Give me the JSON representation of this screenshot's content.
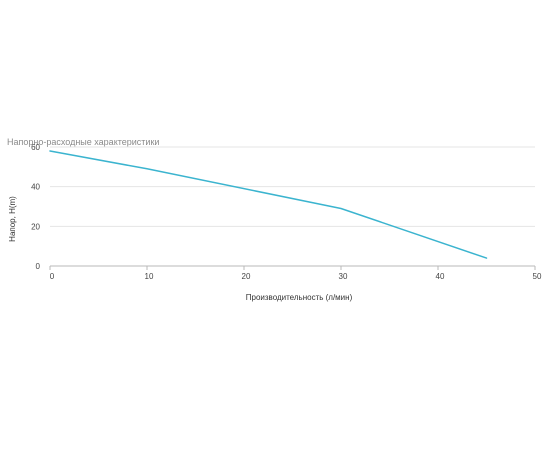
{
  "chart_data": {
    "type": "line",
    "title": "Напорно-расходные характеристики",
    "xlabel": "Производительность (л/мин)",
    "ylabel": "Напор, H(m)",
    "xlim": [
      0,
      50
    ],
    "ylim": [
      0,
      60
    ],
    "xticks": [
      "0",
      "10",
      "20",
      "30",
      "40",
      "50"
    ],
    "yticks": [
      "0",
      "20",
      "40",
      "60"
    ],
    "grid": true,
    "legend": "none",
    "series": [
      {
        "color": "#3bb4cf",
        "x": [
          0,
          10,
          30,
          45
        ],
        "y": [
          58,
          49,
          29,
          4
        ]
      }
    ]
  }
}
